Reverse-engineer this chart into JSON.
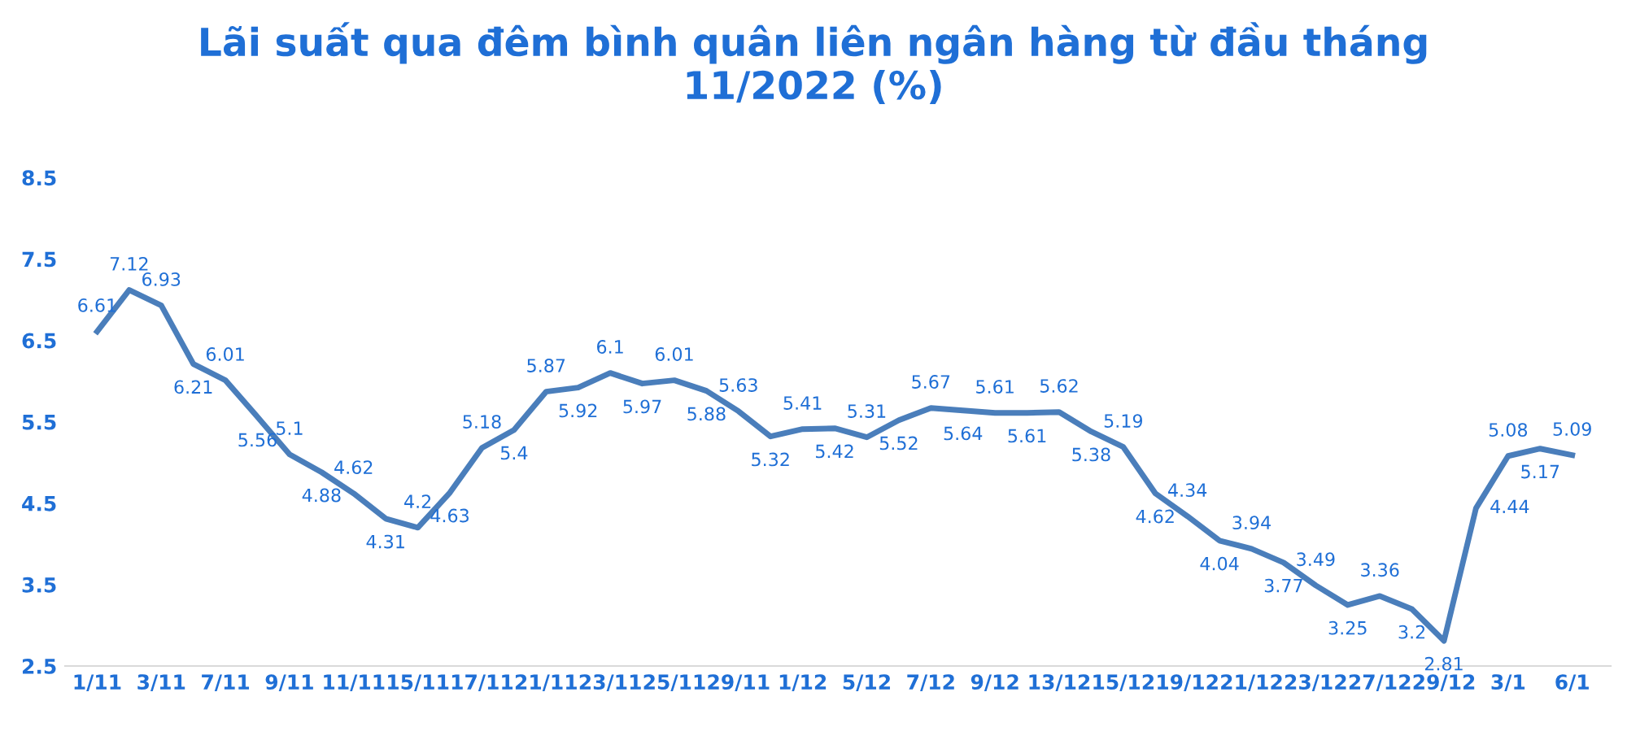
{
  "chart_data": {
    "type": "line",
    "title": "Lãi suất qua đêm bình quân liên ngân hàng từ đầu tháng\n11/2022 (%)",
    "categories": [
      "1/11",
      null,
      "3/11",
      null,
      "7/11",
      null,
      "9/11",
      null,
      "11/11",
      null,
      "15/11",
      null,
      "17/11",
      null,
      "21/11",
      null,
      "23/11",
      null,
      "25/11",
      null,
      "29/11",
      null,
      "1/12",
      null,
      "5/12",
      null,
      "7/12",
      null,
      "9/12",
      null,
      "13/12",
      null,
      "15/12",
      null,
      "19/12",
      null,
      "21/12",
      null,
      "23/12",
      null,
      "27/12",
      null,
      "29/12",
      null,
      "3/1",
      null,
      "6/1"
    ],
    "series": [
      {
        "color": "#4a7ebb",
        "values": [
          6.61,
          7.12,
          6.93,
          6.21,
          6.01,
          5.56,
          5.1,
          4.88,
          4.62,
          4.31,
          4.2,
          4.63,
          5.18,
          5.4,
          5.87,
          5.92,
          6.1,
          5.97,
          6.01,
          5.88,
          5.63,
          5.32,
          5.41,
          5.42,
          5.31,
          5.52,
          5.67,
          5.64,
          5.61,
          5.61,
          5.62,
          5.38,
          5.19,
          4.62,
          4.34,
          4.04,
          3.94,
          3.77,
          3.49,
          3.25,
          3.36,
          3.2,
          2.81,
          4.44,
          5.08,
          5.17,
          5.09
        ]
      }
    ],
    "ylim": [
      2.5,
      8.5
    ],
    "yticks": [
      2.5,
      3.5,
      4.5,
      5.5,
      6.5,
      7.5,
      8.5
    ],
    "grid": false,
    "data_labels": true,
    "legend": false,
    "marker": "none",
    "line_style": "solid"
  }
}
